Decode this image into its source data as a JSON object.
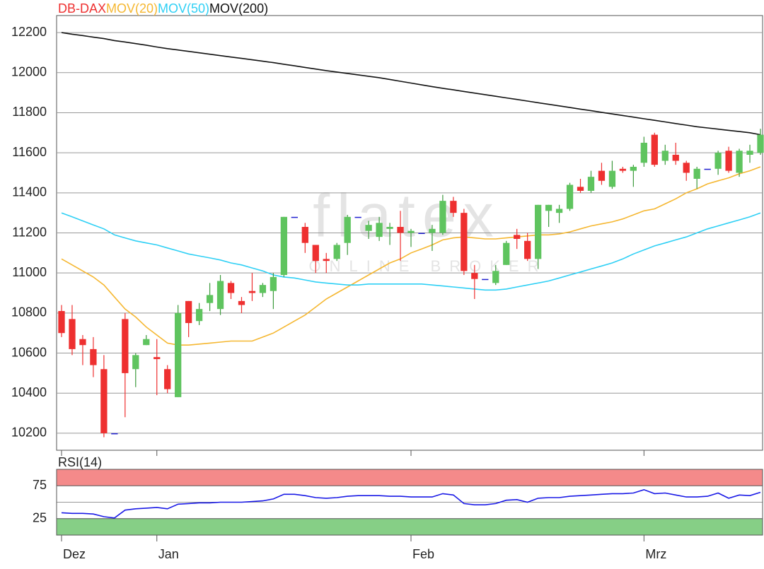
{
  "chart_data": [
    {
      "type": "candlestick",
      "name": "DB-DAX",
      "up_color": "#5fc45f",
      "down_color": "#ee3030",
      "doji_color": "#2020d0",
      "open": [
        10810,
        10770,
        10670,
        10620,
        10520,
        10200,
        10770,
        10520,
        10640,
        10580,
        10520,
        10380,
        10860,
        10760,
        10850,
        10820,
        10950,
        10860,
        10910,
        10900,
        10910,
        10990,
        11280,
        11230,
        11140,
        11070,
        11070,
        11150,
        11280,
        11210,
        11180,
        11220,
        11230,
        11200,
        11200,
        11200,
        11200,
        11360,
        11300,
        11000,
        10970,
        10950,
        11040,
        11190,
        11160,
        11070,
        11310,
        11300,
        11320,
        11430,
        11410,
        11510,
        11430,
        11520,
        11510,
        11550,
        11690,
        11560,
        11590,
        11550,
        11470,
        11520,
        11520,
        11610,
        11500,
        11590,
        11600
      ],
      "high": [
        10840,
        10840,
        10690,
        10680,
        10590,
        10200,
        10800,
        10600,
        10690,
        10670,
        10540,
        10840,
        10860,
        10850,
        10950,
        10990,
        10960,
        10880,
        11000,
        10950,
        11000,
        11280,
        11280,
        11250,
        11140,
        11100,
        11150,
        11290,
        11280,
        11260,
        11280,
        11250,
        11310,
        11220,
        11200,
        11240,
        11390,
        11380,
        11320,
        11040,
        10970,
        11040,
        11160,
        11220,
        11200,
        11340,
        11340,
        11340,
        11450,
        11470,
        11510,
        11550,
        11560,
        11530,
        11540,
        11680,
        11700,
        11640,
        11650,
        11560,
        11530,
        11520,
        11610,
        11630,
        11620,
        11640,
        11720
      ],
      "low": [
        10680,
        10590,
        10540,
        10480,
        10180,
        10200,
        10280,
        10430,
        10640,
        10390,
        10400,
        10380,
        10680,
        10740,
        10810,
        10790,
        10870,
        10800,
        10860,
        10880,
        10820,
        10980,
        11280,
        11100,
        11000,
        11000,
        11060,
        11090,
        11280,
        11170,
        11160,
        11140,
        11060,
        11130,
        11200,
        11110,
        11190,
        11280,
        10990,
        10870,
        10970,
        10940,
        11040,
        11120,
        11060,
        11020,
        11230,
        11250,
        11310,
        11400,
        11400,
        11440,
        11420,
        11500,
        11430,
        11530,
        11530,
        11540,
        11540,
        11460,
        11420,
        11520,
        11490,
        11500,
        11480,
        11550,
        11590
      ],
      "close": [
        10700,
        10620,
        10640,
        10540,
        10200,
        10200,
        10500,
        10590,
        10670,
        10570,
        10420,
        10800,
        10750,
        10820,
        10890,
        10960,
        10900,
        10840,
        10900,
        10940,
        10980,
        11280,
        11280,
        11150,
        11060,
        11060,
        11140,
        11280,
        11280,
        11240,
        11250,
        11230,
        11200,
        11210,
        11200,
        11220,
        11360,
        11300,
        11010,
        10970,
        10970,
        11010,
        11150,
        11170,
        11070,
        11340,
        11340,
        11320,
        11440,
        11410,
        11480,
        11460,
        11510,
        11510,
        11530,
        11650,
        11540,
        11610,
        11560,
        11500,
        11520,
        11520,
        11600,
        11510,
        11610,
        11610,
        11690
      ],
      "series": [
        {
          "name": "MOV(20)",
          "color": "#f5b731",
          "values": [
            11070,
            11040,
            11010,
            10980,
            10940,
            10880,
            10820,
            10780,
            10730,
            10690,
            10650,
            10640,
            10640,
            10645,
            10650,
            10655,
            10660,
            10660,
            10660,
            10680,
            10700,
            10730,
            10760,
            10790,
            10830,
            10870,
            10900,
            10930,
            10960,
            10990,
            11020,
            11050,
            11070,
            11100,
            11120,
            11140,
            11165,
            11175,
            11180,
            11175,
            11170,
            11170,
            11175,
            11180,
            11185,
            11190,
            11190,
            11195,
            11205,
            11220,
            11235,
            11245,
            11255,
            11270,
            11290,
            11310,
            11320,
            11345,
            11370,
            11400,
            11420,
            11445,
            11460,
            11475,
            11495,
            11510,
            11530
          ]
        },
        {
          "name": "MOV(50)",
          "color": "#2fd0f5",
          "values": [
            11300,
            11280,
            11260,
            11240,
            11220,
            11190,
            11175,
            11160,
            11150,
            11140,
            11125,
            11110,
            11095,
            11085,
            11075,
            11065,
            11050,
            11040,
            11025,
            11010,
            10990,
            10980,
            10975,
            10965,
            10955,
            10950,
            10945,
            10940,
            10940,
            10945,
            10945,
            10945,
            10945,
            10945,
            10945,
            10940,
            10935,
            10930,
            10925,
            10920,
            10915,
            10915,
            10920,
            10930,
            10940,
            10950,
            10960,
            10975,
            10990,
            11005,
            11020,
            11035,
            11050,
            11070,
            11095,
            11115,
            11135,
            11150,
            11165,
            11180,
            11200,
            11220,
            11235,
            11250,
            11265,
            11280,
            11300
          ]
        },
        {
          "name": "MOV(200)",
          "color": "#111111",
          "values": [
            12200,
            12192,
            12185,
            12177,
            12170,
            12160,
            12153,
            12145,
            12137,
            12128,
            12120,
            12113,
            12106,
            12099,
            12092,
            12085,
            12078,
            12071,
            12064,
            12057,
            12050,
            12042,
            12034,
            12026,
            12018,
            12010,
            12003,
            11996,
            11989,
            11982,
            11975,
            11966,
            11957,
            11948,
            11939,
            11930,
            11922,
            11914,
            11906,
            11898,
            11890,
            11882,
            11874,
            11866,
            11858,
            11850,
            11842,
            11834,
            11826,
            11818,
            11810,
            11802,
            11794,
            11786,
            11778,
            11770,
            11762,
            11754,
            11746,
            11738,
            11730,
            11724,
            11718,
            11712,
            11706,
            11700,
            11690
          ]
        }
      ],
      "ylim": [
        10115,
        12285
      ],
      "yticks": [
        10200,
        10400,
        10600,
        10800,
        11000,
        11200,
        11400,
        11600,
        11800,
        12000,
        12200
      ],
      "grid": true,
      "watermark": [
        "flatex",
        "ONLINE BROKER"
      ]
    },
    {
      "type": "line",
      "categories": [
        "Dez",
        null,
        null,
        null,
        null,
        null,
        null,
        null,
        null,
        "Jan",
        null,
        null,
        null,
        null,
        null,
        null,
        null,
        null,
        null,
        null,
        null,
        null,
        null,
        null,
        null,
        null,
        null,
        null,
        null,
        null,
        null,
        null,
        null,
        "Feb",
        null,
        null,
        null,
        null,
        null,
        null,
        null,
        null,
        null,
        null,
        null,
        null,
        null,
        null,
        null,
        null,
        null,
        null,
        null,
        null,
        null,
        "Mrz",
        null,
        null,
        null,
        null,
        null,
        null,
        null,
        null,
        null,
        null,
        null
      ],
      "series": [
        {
          "name": "RSI(14)",
          "color": "#1a1ae6",
          "values": [
            34,
            33,
            33,
            32,
            28,
            26,
            38,
            40,
            41,
            42,
            40,
            47,
            48,
            49,
            49,
            50,
            50,
            50,
            51,
            52,
            55,
            62,
            62,
            60,
            57,
            56,
            57,
            59,
            60,
            60,
            60,
            59,
            59,
            58,
            58,
            58,
            63,
            61,
            48,
            46,
            46,
            48,
            53,
            54,
            50,
            56,
            57,
            57,
            59,
            60,
            61,
            62,
            63,
            63,
            64,
            69,
            63,
            64,
            61,
            58,
            58,
            59,
            64,
            56,
            61,
            60,
            65
          ]
        }
      ],
      "ylim": [
        0,
        100
      ],
      "yticks": [
        25,
        75
      ],
      "bands": [
        {
          "from": 75,
          "to": 100,
          "color": "#f48a8a"
        },
        {
          "from": 0,
          "to": 25,
          "color": "#86cf86"
        }
      ]
    }
  ]
}
